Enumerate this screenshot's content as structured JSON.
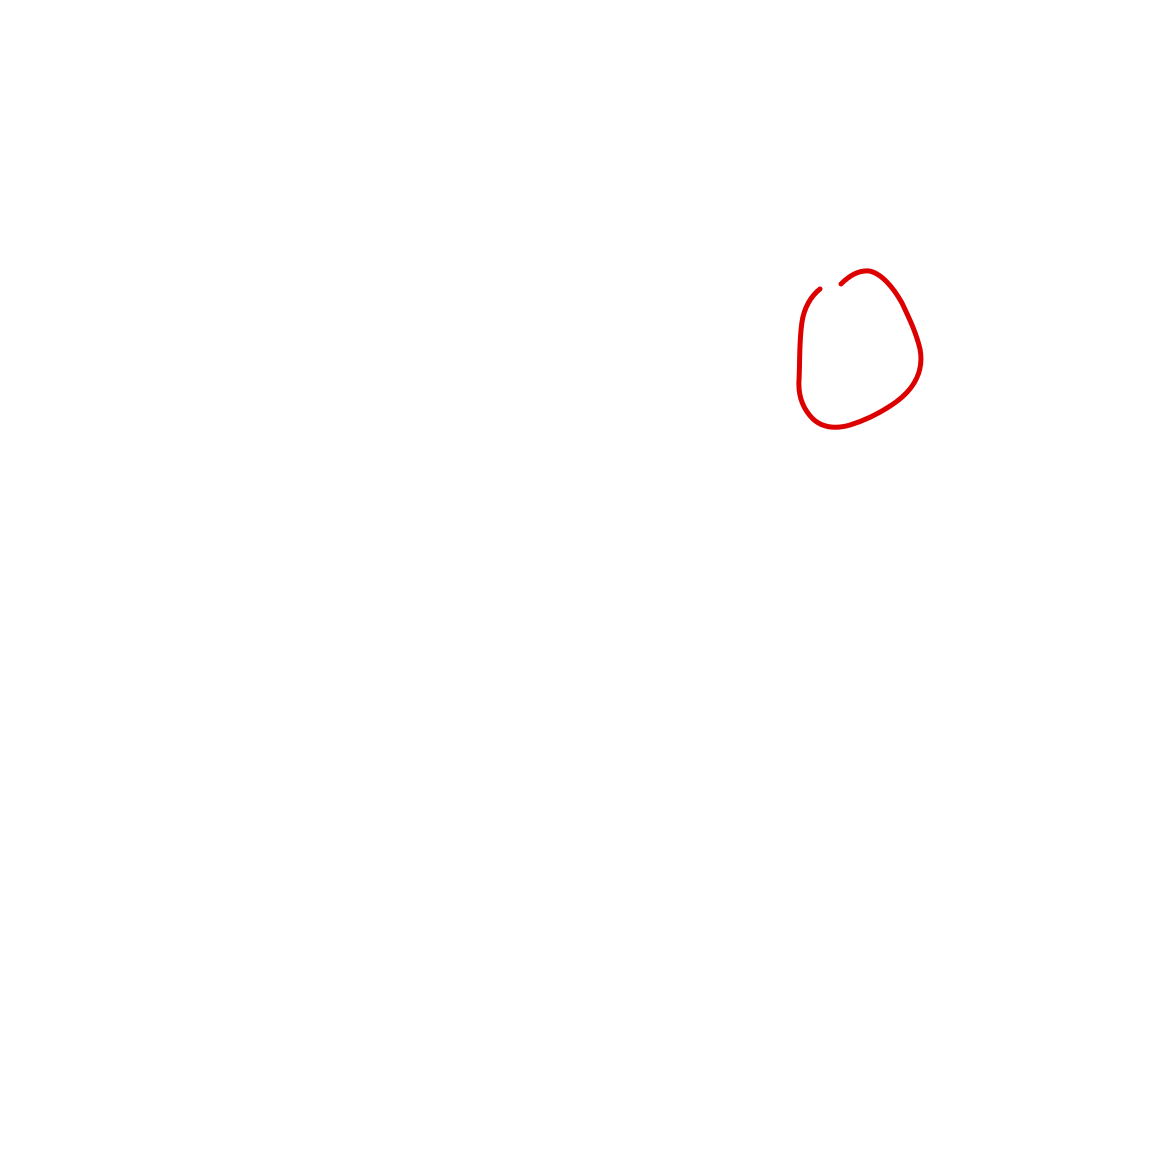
{
  "canvas": {
    "background_color": "#ffffff"
  },
  "strokes": [
    {
      "shape": "hand-drawn loop",
      "color": "#dd0000"
    }
  ]
}
